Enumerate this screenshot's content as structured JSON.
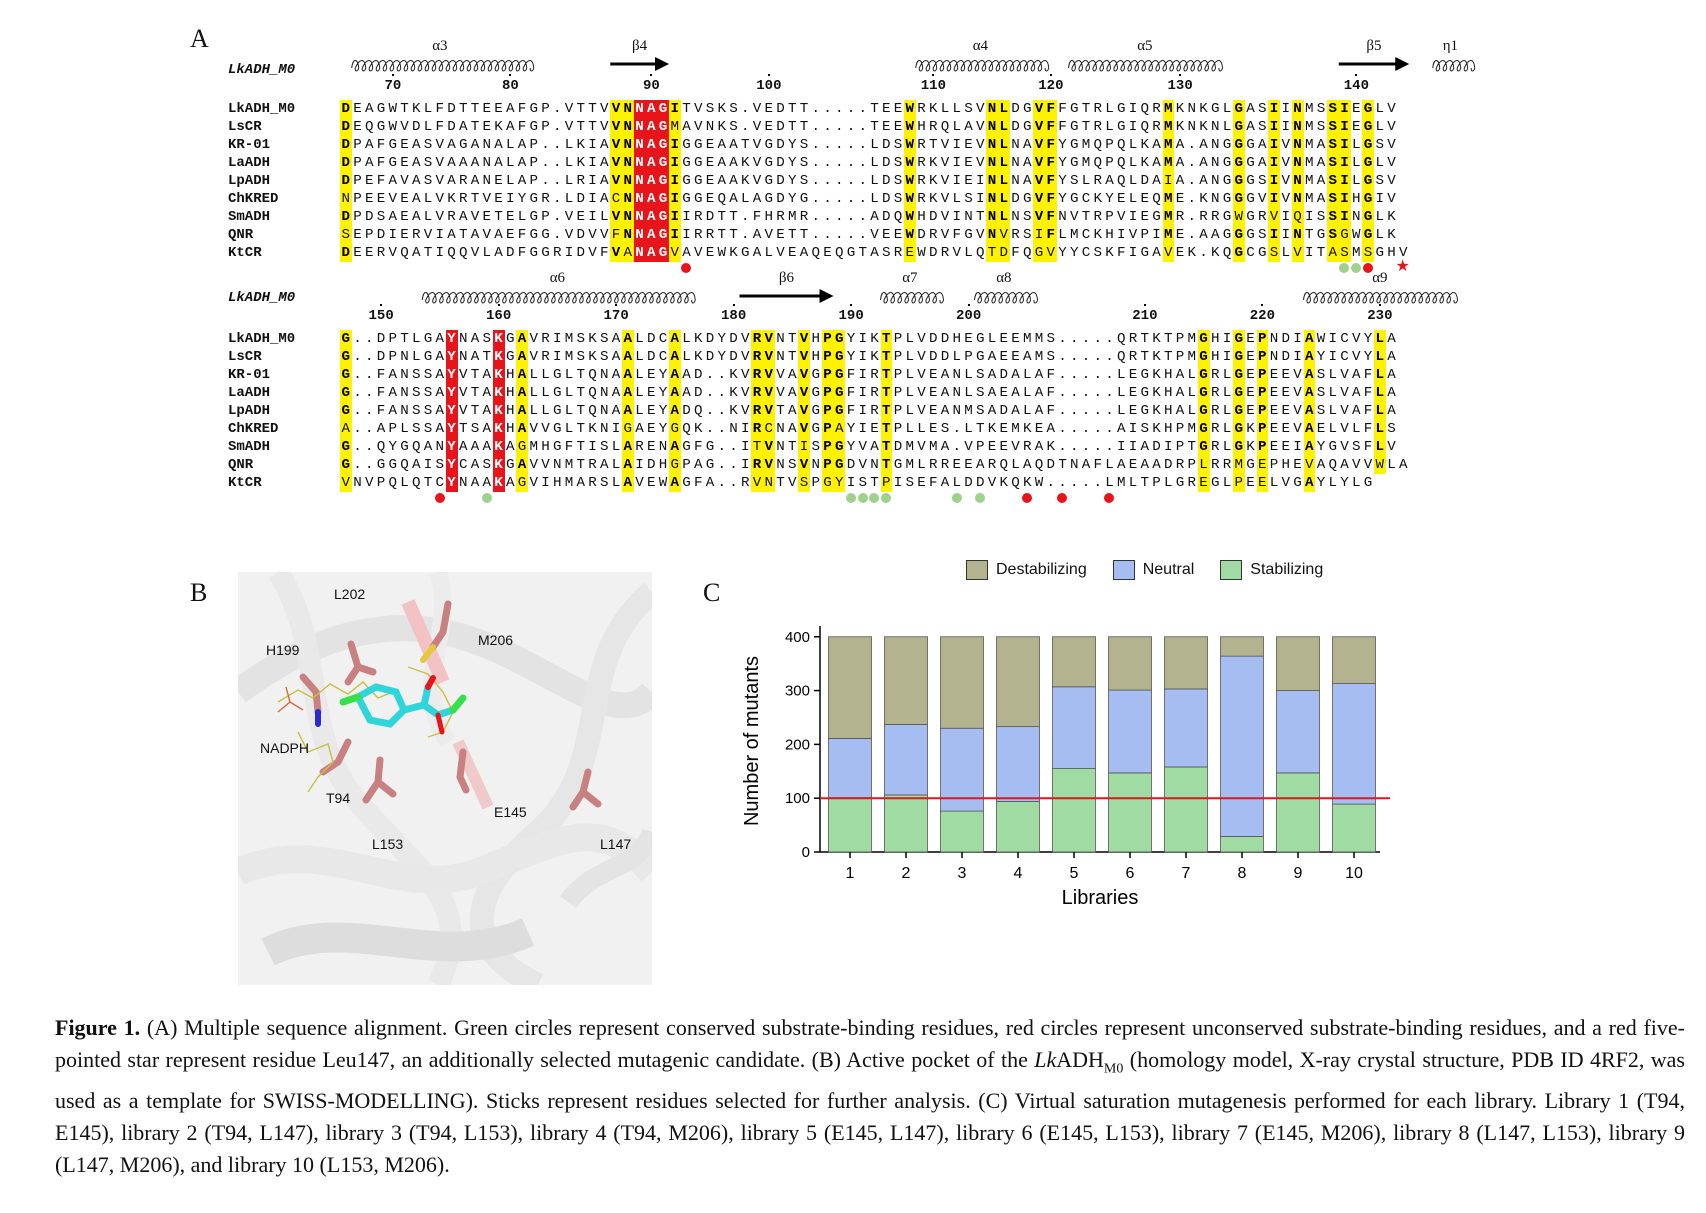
{
  "panel_labels": {
    "a": "A",
    "b": "B",
    "c": "C"
  },
  "alignment": {
    "reference": "LkADH_M0",
    "block1": {
      "ss": [
        {
          "label": "α3",
          "type": "helix",
          "start": 1,
          "end": 16
        },
        {
          "label": "β4",
          "type": "strand",
          "start": 23,
          "end": 28
        },
        {
          "label": "α4",
          "type": "helix",
          "start": 49,
          "end": 60
        },
        {
          "label": "α5",
          "type": "helix",
          "start": 62,
          "end": 75
        },
        {
          "label": "β5",
          "type": "strand",
          "start": 85,
          "end": 91
        },
        {
          "label": "η1",
          "type": "helix",
          "start": 93,
          "end": 96
        }
      ],
      "numbers": [
        {
          "label": "70",
          "col": 4
        },
        {
          "label": "80",
          "col": 14
        },
        {
          "label": "90",
          "col": 26
        },
        {
          "label": "100",
          "col": 36
        },
        {
          "label": "110",
          "col": 50
        },
        {
          "label": "120",
          "col": 60
        },
        {
          "label": "130",
          "col": 71
        },
        {
          "label": "140",
          "col": 86
        }
      ],
      "rows": [
        {
          "name": "LkADH_M0",
          "seq": "DEAGWTKLFDTTEEAFGP.VTTVVNNAGITVSKS.VEDTT.....TEEWRKLLSVNLDGVFFGTRLGIQRMKNKGLGASIINMSSIEGLV"
        },
        {
          "name": "LsCR",
          "seq": "DEQGWVDLFDATEKAFGP.VTTVVNNAGMAVNKS.VEDTT.....TEEWHRQLAVNLDGVFFGTRLGIQRMKNKNLGASIINMSSIEGLV"
        },
        {
          "name": "KR-01",
          "seq": "DPAFGEASVAGANALAP..LKIAVNNAGIGGEAATVGDYS.....LDSWRTVIEVNLNAVFYGMQPQLKAMA.ANGGGAIVNMASILGSV"
        },
        {
          "name": "LaADH",
          "seq": "DPAFGEASVAAANALAP..LKIAVNNAGIGGEAAKVGDYS.....LDSWRKVIEVNLNAVFYGMQPQLKAMA.ANGGGAIVNMASILGLV"
        },
        {
          "name": "LpADH",
          "seq": "DPEFAVASVARANELAP..LRIAVNNAGIGGEAAKVGDYS.....LDSWRKVIEINLNAVFYSLRAQLDAIA.ANGGGSIVNMASILGSV"
        },
        {
          "name": "ChKRED",
          "seq": "NPEEVEALVKRTVEIYGR.LDIACNNAGIGGEQALAGDYG.....LDSWRKVLSINLDGVFYGCKYELEQME.KNGGGVIVNMASIHGIV"
        },
        {
          "name": "SmADH",
          "seq": "DPDSAEALVRAVETELGP.VEILVNNAGIIRDTT.FHRMR.....ADQWHDVINTNLNSVFNVTRPVIEGMR.RRGWGRVIQISSINGLK"
        },
        {
          "name": "QNR",
          "seq": "SEPDIERVIATAVAEFGG.VDVVFNNAGIIRRTT.AVETT.....VEEWDRVFGVNVRSIFLMCKHIVPIME.AAGGGSIINTGSGWGLK"
        },
        {
          "name": "KtCR",
          "seq": "DEERVQATIQQVLADFGGRIDVFVANAGVAVEWKGALVEAQEQGTASREWDRVLQTDFQGVYYCSKFIGAVEK.KQGCGSLVITASMSGHV"
        }
      ],
      "marks": [
        {
          "type": "red",
          "col": 29
        },
        {
          "type": "green",
          "col": 85
        },
        {
          "type": "green",
          "col": 86
        },
        {
          "type": "red",
          "col": 87
        },
        {
          "type": "star",
          "col": 90
        }
      ]
    },
    "block2": {
      "ss": [
        {
          "label": "α6",
          "type": "helix",
          "start": 7,
          "end": 30
        },
        {
          "label": "β6",
          "type": "strand",
          "start": 34,
          "end": 42
        },
        {
          "label": "α7",
          "type": "helix",
          "start": 46,
          "end": 51
        },
        {
          "label": "α8",
          "type": "helix",
          "start": 54,
          "end": 59
        },
        {
          "label": "α9",
          "type": "helix",
          "start": 82,
          "end": 95
        }
      ],
      "numbers": [
        {
          "label": "150",
          "col": 3
        },
        {
          "label": "160",
          "col": 13
        },
        {
          "label": "170",
          "col": 23
        },
        {
          "label": "180",
          "col": 33
        },
        {
          "label": "190",
          "col": 43
        },
        {
          "label": "200",
          "col": 53
        },
        {
          "label": "210",
          "col": 68
        },
        {
          "label": "220",
          "col": 78
        },
        {
          "label": "230",
          "col": 88
        }
      ],
      "rows": [
        {
          "name": "LkADH_M0",
          "seq": "G..DPTLGAYNASKGAVRIMSKSAALDCALKDYDVRVNTVHPGYIKTPLVDDHEGLEEMMS.....QRTKTPMGHIGEPNDIAWICVYLA"
        },
        {
          "name": "LsCR",
          "seq": "G..DPNLGAYNATKGAVRIMSKSAALDCALKDYDVRVNTVHPGYIKTPLVDDLPGAEEAMS.....QRTKTPMGHIGEPNDIAYICVYLA"
        },
        {
          "name": "KR-01",
          "seq": "G..FANSSAYVTAKHALLGLTQNAALEYAAD..KVRVVAVGPGFIRTPLVEANLSADALAF.....LEGKHALGRLGEPEEVASLVAFLA"
        },
        {
          "name": "LaADH",
          "seq": "G..FANSSAYVTAKHALLGLTQNAALEYAAD..KVRVVAVGPGFIRTPLVEANLSAEALAF.....LEGKHALGRLGEPEEVASLVAFLA"
        },
        {
          "name": "LpADH",
          "seq": "G..FANSSAYVTAKHALLGLTQNAALEYADQ..KVRVTAVGPGFIRTPLVEANMSADALAF.....LEGKHALGRLGEPEEVASLVAFLA"
        },
        {
          "name": "ChKRED",
          "seq": "A..APLSSAYTSAKHAVVGLTKNIGAEYGQK..NIRCNAVGPAYIETPLLES.LTKEMKEA.....AISKHPMGRLGKPEEVAELVLFLS"
        },
        {
          "name": "SmADH",
          "seq": "G..QYGQANYAAAKAGMHGFTISLARENAGFG..ITVNTISPGYVATDMVMA.VPEEVRAK.....IIADIPTGRLGKPEEIAYGVSFLV"
        },
        {
          "name": "QNR",
          "seq": "G..GGQAISYCASKGAVVNMTRALAIDHGPAG..IRVNSVNPGDVNTGMLRREEARQLAQDTNAFLAEAADRPLRRMGEPHEVAQAVVWLA"
        },
        {
          "name": "KtCR",
          "seq": "VNVPQLQTCYNAAKAGVIHMARSLAVEWAGFA..RVNTVSPGYISTPISEFALDDVKQKW.....LMLTPLGREGLPEELVGAYLYLG"
        }
      ],
      "marks": [
        {
          "type": "red",
          "col": 8
        },
        {
          "type": "green",
          "col": 12
        },
        {
          "type": "green",
          "col": 43
        },
        {
          "type": "green",
          "col": 44
        },
        {
          "type": "green",
          "col": 45
        },
        {
          "type": "green",
          "col": 46
        },
        {
          "type": "green",
          "col": 52
        },
        {
          "type": "green",
          "col": 54
        },
        {
          "type": "red",
          "col": 58
        },
        {
          "type": "red",
          "col": 61
        },
        {
          "type": "red",
          "col": 65
        }
      ]
    }
  },
  "structure_labels": {
    "l202": "L202",
    "m206": "M206",
    "h199": "H199",
    "nadph": "NADPH",
    "t94": "T94",
    "e145": "E145",
    "l153": "L153",
    "l147": "L147"
  },
  "colors": {
    "destabilizing": "#b4b38f",
    "neutral": "#a5bdf0",
    "stabilizing": "#9fdba3",
    "threshold": "#e8141c",
    "red_highlight": "#e8141c",
    "yellow_highlight": "#fff200",
    "ligand": "#2fd5d9",
    "residue_sticks": "#c88080"
  },
  "chart_data": {
    "type": "bar",
    "stacked": true,
    "categories": [
      "1",
      "2",
      "3",
      "4",
      "5",
      "6",
      "7",
      "8",
      "9",
      "10"
    ],
    "series": [
      {
        "name": "Stabilizing",
        "values": [
          101,
          106,
          76,
          94,
          155,
          147,
          158,
          29,
          147,
          89
        ]
      },
      {
        "name": "Neutral",
        "values": [
          110,
          131,
          154,
          139,
          152,
          154,
          145,
          335,
          153,
          224
        ]
      },
      {
        "name": "Destabilizing",
        "values": [
          189,
          163,
          170,
          167,
          93,
          99,
          97,
          36,
          100,
          87
        ]
      }
    ],
    "legend_order": [
      "Destabilizing",
      "Neutral",
      "Stabilizing"
    ],
    "xlabel": "Libraries",
    "ylabel": "Number of mutants",
    "ylim": [
      0,
      420
    ],
    "yticks": [
      "0",
      "100",
      "200",
      "300",
      "400"
    ],
    "threshold_line": 100,
    "legend_position": "top"
  },
  "caption": {
    "figure_label": "Figure 1.",
    "text": " (A) Multiple sequence alignment. Green circles represent conserved substrate-binding residues, red circles represent unconserved substrate-binding residues, and a red five-pointed star represent residue Leu147, an additionally selected mutagenic candidate. (B) Active pocket of the ",
    "lk": "Lk",
    "adh": "ADH",
    "sub": "M0",
    "text2": " (homology model, X-ray crystal structure, PDB ID 4RF2, was used as a template for SWISS-MODELLING). Sticks represent residues selected for further analysis. (C) Virtual saturation mutagenesis performed for each library. Library 1 (T94, E145), library 2 (T94, L147), library 3 (T94, L153), library 4 (T94, M206), library 5 (E145, L147), library 6 (E145, L153), library 7 (E145, M206), library 8 (L147, L153), library 9 (L147, M206), and library 10 (L153, M206)."
  }
}
